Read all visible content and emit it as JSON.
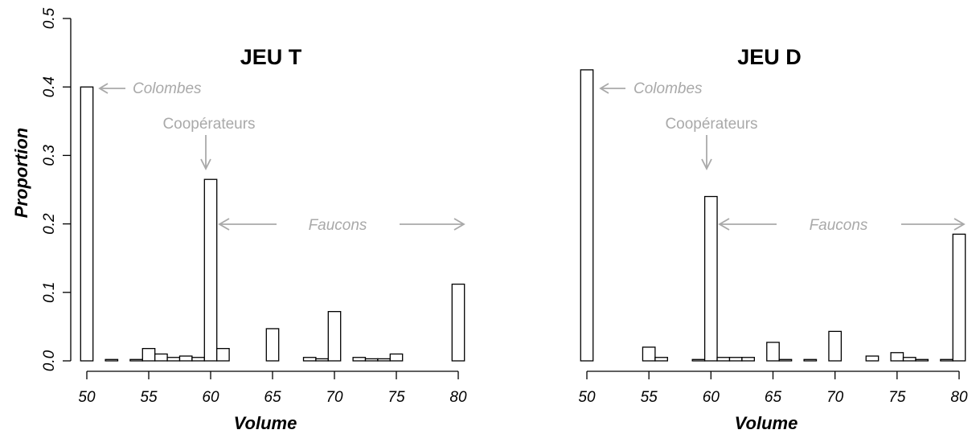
{
  "colors": {
    "bar_fill": "#ffffff",
    "bar_stroke": "#000000",
    "annotation": "#a9a9a9"
  },
  "chart_data": [
    {
      "type": "bar",
      "title": "JEU T",
      "xlabel": "Volume",
      "ylabel": "Proportion",
      "xlim": [
        50,
        80
      ],
      "ylim": [
        0,
        0.5
      ],
      "x_ticks": [
        50,
        55,
        60,
        65,
        70,
        75,
        80
      ],
      "x_tick_labels": [
        "50",
        "55",
        "60",
        "65",
        "70",
        "75",
        "80"
      ],
      "y_ticks": [
        0,
        0.1,
        0.2,
        0.3,
        0.4,
        0.5
      ],
      "y_tick_labels": [
        "0.0",
        "0.1",
        "0.2",
        "0.3",
        "0.4",
        "0.5"
      ],
      "grid": false,
      "x": [
        50,
        51,
        52,
        53,
        54,
        55,
        56,
        57,
        58,
        59,
        60,
        61,
        62,
        63,
        64,
        65,
        66,
        67,
        68,
        69,
        70,
        71,
        72,
        73,
        74,
        75,
        76,
        77,
        78,
        79,
        80
      ],
      "values": [
        0.4,
        0,
        0.002,
        0,
        0.002,
        0.018,
        0.01,
        0.005,
        0.007,
        0.005,
        0.265,
        0.018,
        0,
        0,
        0,
        0.047,
        0,
        0,
        0.005,
        0.003,
        0.072,
        0,
        0.005,
        0.003,
        0.003,
        0.01,
        0,
        0,
        0,
        0,
        0.112
      ],
      "annotations": {
        "colombes": "Colombes",
        "cooperateurs": "Coopérateurs",
        "faucons": "Faucons"
      }
    },
    {
      "type": "bar",
      "title": "JEU D",
      "xlabel": "Volume",
      "ylabel": "",
      "xlim": [
        50,
        80
      ],
      "ylim": [
        0,
        0.5
      ],
      "x_ticks": [
        50,
        55,
        60,
        65,
        70,
        75,
        80
      ],
      "x_tick_labels": [
        "50",
        "55",
        "60",
        "65",
        "70",
        "75",
        "80"
      ],
      "grid": false,
      "x": [
        50,
        51,
        52,
        53,
        54,
        55,
        56,
        57,
        58,
        59,
        60,
        61,
        62,
        63,
        64,
        65,
        66,
        67,
        68,
        69,
        70,
        71,
        72,
        73,
        74,
        75,
        76,
        77,
        78,
        79,
        80
      ],
      "values": [
        0.425,
        0,
        0,
        0,
        0,
        0.02,
        0.005,
        0,
        0,
        0.002,
        0.24,
        0.005,
        0.005,
        0.005,
        0,
        0.027,
        0.002,
        0,
        0.002,
        0,
        0.043,
        0,
        0,
        0.007,
        0,
        0.012,
        0.005,
        0.002,
        0,
        0.002,
        0.185
      ],
      "annotations": {
        "colombes": "Colombes",
        "cooperateurs": "Coopérateurs",
        "faucons": "Faucons"
      }
    }
  ]
}
